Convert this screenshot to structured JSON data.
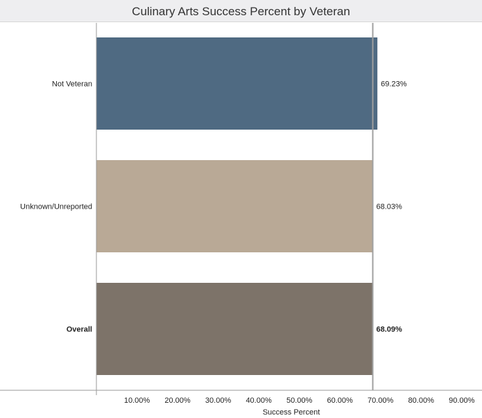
{
  "chart_data": {
    "type": "bar",
    "orientation": "horizontal",
    "title": "Culinary Arts Success Percent by Veteran",
    "xlabel": "Success Percent",
    "ylabel": "",
    "categories": [
      "Not Veteran",
      "Unknown/Unreported",
      "Overall"
    ],
    "values": [
      69.23,
      68.03,
      68.09
    ],
    "value_labels": [
      "69.23%",
      "68.03%",
      "68.09%"
    ],
    "bold_categories": [
      "Overall"
    ],
    "colors": [
      "#4f6a82",
      "#b9a996",
      "#7d7369"
    ],
    "reference_line": 68.09,
    "xlim": [
      0,
      100
    ],
    "x_ticks": [
      10,
      20,
      30,
      40,
      50,
      60,
      70,
      80,
      90
    ],
    "x_tick_labels": [
      "10.00%",
      "20.00%",
      "30.00%",
      "40.00%",
      "50.00%",
      "60.00%",
      "70.00%",
      "80.00%",
      "90.00%"
    ],
    "grid": false,
    "legend": "none"
  }
}
